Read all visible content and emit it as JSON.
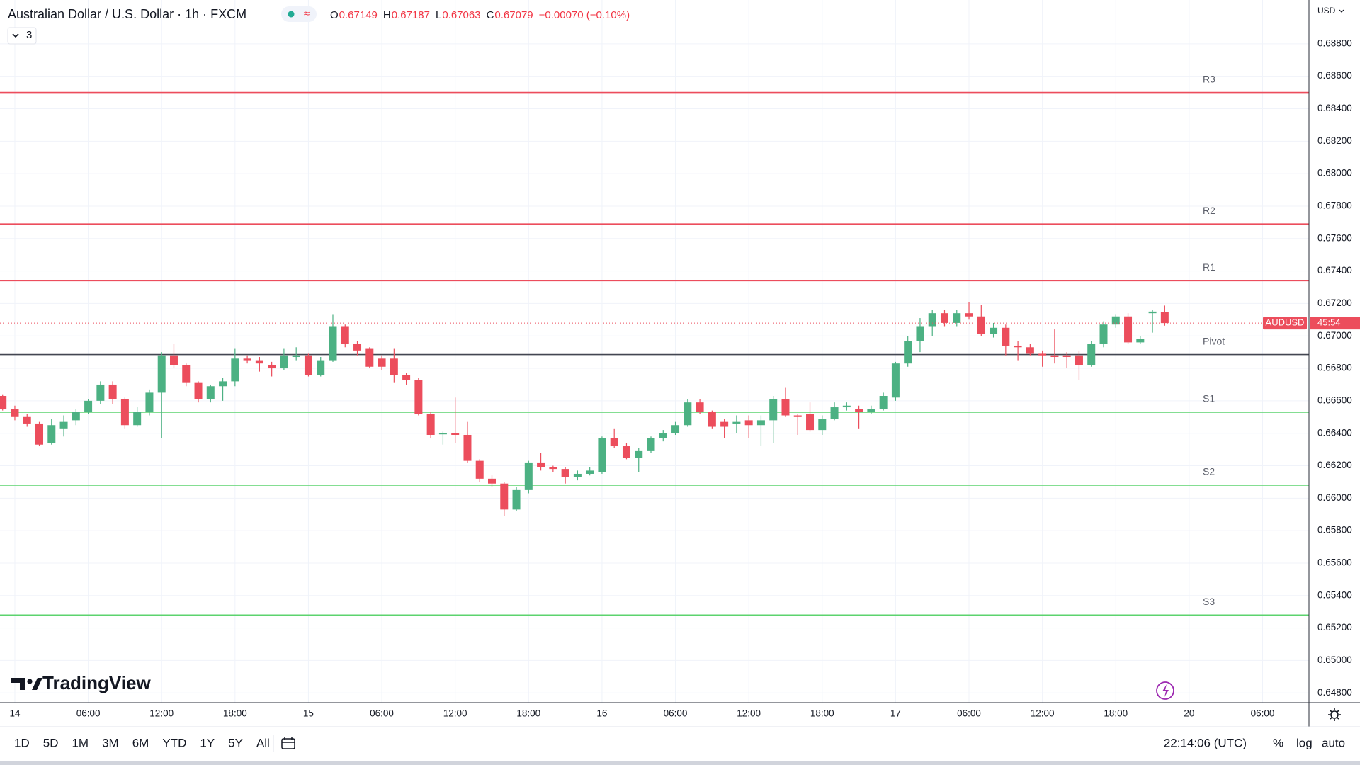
{
  "chart_data": {
    "type": "candlestick",
    "title": "Australian Dollar / U.S. Dollar · 1h · FXCM",
    "indicator_count": "3",
    "ohlc_header": [
      {
        "label": "O",
        "value": 0.67149
      },
      {
        "label": "H",
        "value": 0.67187
      },
      {
        "label": "L",
        "value": 0.67063
      },
      {
        "label": "C",
        "value": 0.67079
      }
    ],
    "change": "−0.00070 (−0.10%)",
    "currency": "USD",
    "symbol_tag": "AUDUSD",
    "countdown": "45:54",
    "watermark": "TradingView",
    "up_color": "#4cb183",
    "down_color": "#ec4d5c",
    "categories": [
      null,
      "14",
      null,
      null,
      null,
      null,
      null,
      "06:00",
      null,
      null,
      null,
      null,
      null,
      "12:00",
      null,
      null,
      null,
      null,
      null,
      "18:00",
      null,
      null,
      null,
      null,
      null,
      "15",
      null,
      null,
      null,
      null,
      null,
      "06:00",
      null,
      null,
      null,
      null,
      null,
      "12:00",
      null,
      null,
      null,
      null,
      null,
      "18:00",
      null,
      null,
      null,
      null,
      null,
      "16",
      null,
      null,
      null,
      null,
      null,
      "06:00",
      null,
      null,
      null,
      null,
      null,
      "12:00",
      null,
      null,
      null,
      null,
      null,
      "18:00",
      null,
      null,
      null,
      null,
      null,
      "17",
      null,
      null,
      null,
      null,
      null,
      "06:00",
      null,
      null,
      null,
      null,
      null,
      "12:00",
      null,
      null,
      null,
      null,
      null,
      "18:00",
      null,
      null,
      null,
      null,
      null,
      "20",
      null,
      null,
      null,
      null,
      null,
      "06:00",
      null,
      null,
      null
    ],
    "open": [
      0.6663,
      0.6655,
      0.665,
      0.6646,
      0.6634,
      0.6643,
      0.6648,
      0.6653,
      0.666,
      0.667,
      0.6661,
      0.6645,
      0.6653,
      0.6665,
      0.6688,
      0.6682,
      0.6671,
      0.6661,
      0.6669,
      0.6672,
      0.6686,
      0.6685,
      0.6682,
      0.668,
      0.6687,
      0.6688,
      0.6676,
      0.6685,
      0.6706,
      0.6695,
      0.6692,
      0.6686,
      0.6686,
      0.6676,
      0.6673,
      0.6652,
      0.664,
      0.664,
      0.6639,
      0.6623,
      0.6612,
      0.6609,
      0.6593,
      0.6605,
      0.6622,
      0.6619,
      0.6618,
      0.6613,
      0.6615,
      0.6616,
      0.6637,
      0.6632,
      0.6625,
      0.6629,
      0.6637,
      0.664,
      0.6645,
      0.6659,
      0.6653,
      0.6647,
      0.6646,
      0.6648,
      0.6645,
      0.6648,
      0.6661,
      0.6651,
      0.6652,
      0.6642,
      0.6649,
      0.6656,
      0.6655,
      0.6653,
      0.6655,
      0.6662,
      0.6683,
      0.6697,
      0.6706,
      0.6714,
      0.6708,
      0.6714,
      0.6712,
      0.6701,
      0.6705,
      0.6694,
      0.6693,
      0.6689,
      0.6688,
      0.6688,
      0.6688,
      0.6682,
      0.6695,
      0.6707,
      0.6712,
      0.6696,
      0.6714,
      0.67149,
      null,
      null,
      null,
      null,
      null,
      null,
      null,
      null,
      null,
      null,
      null
    ],
    "high": [
      0.6664,
      0.6657,
      0.6652,
      0.6647,
      0.6649,
      0.6651,
      0.6655,
      0.6661,
      0.6672,
      0.6672,
      0.6662,
      0.6656,
      0.6667,
      0.669,
      0.6695,
      0.6683,
      0.6672,
      0.667,
      0.6674,
      0.6692,
      0.6688,
      0.6687,
      0.6684,
      0.6692,
      0.6693,
      0.6689,
      0.6687,
      0.6713,
      0.6707,
      0.6697,
      0.6693,
      0.6688,
      0.6692,
      0.6677,
      0.6674,
      0.6653,
      0.6641,
      0.6662,
      0.6647,
      0.6624,
      0.6614,
      0.661,
      0.6607,
      0.6623,
      0.6628,
      0.662,
      0.6619,
      0.6617,
      0.6619,
      0.6638,
      0.6643,
      0.6634,
      0.6631,
      0.6638,
      0.6642,
      0.6647,
      0.6661,
      0.6661,
      0.6654,
      0.6649,
      0.6651,
      0.6651,
      0.6651,
      0.6663,
      0.6668,
      0.6652,
      0.6659,
      0.6651,
      0.6659,
      0.6659,
      0.6657,
      0.6657,
      0.6665,
      0.6684,
      0.67,
      0.6711,
      0.6716,
      0.6716,
      0.6716,
      0.6721,
      0.6719,
      0.6708,
      0.6707,
      0.6697,
      0.6695,
      0.6691,
      0.6704,
      0.669,
      0.6691,
      0.6697,
      0.6709,
      0.6713,
      0.6714,
      0.67,
      0.6716,
      0.67187,
      null,
      null,
      null,
      null,
      null,
      null,
      null,
      null,
      null,
      null,
      null
    ],
    "low": [
      0.6654,
      0.6648,
      0.6644,
      0.6632,
      0.6633,
      0.6638,
      0.6645,
      0.6652,
      0.6658,
      0.6658,
      0.6643,
      0.6644,
      0.6651,
      0.6637,
      0.668,
      0.6669,
      0.6659,
      0.6659,
      0.666,
      0.6669,
      0.6683,
      0.6678,
      0.6675,
      0.6679,
      0.6685,
      0.6675,
      0.6675,
      0.6684,
      0.6693,
      0.6688,
      0.668,
      0.6679,
      0.6671,
      0.667,
      0.6651,
      0.6637,
      0.6633,
      0.6634,
      0.6622,
      0.661,
      0.6607,
      0.6589,
      0.6592,
      0.6603,
      0.6617,
      0.6616,
      0.6609,
      0.6611,
      0.6614,
      0.6615,
      0.6631,
      0.6624,
      0.6616,
      0.6628,
      0.6635,
      0.6639,
      0.6644,
      0.6652,
      0.6643,
      0.6637,
      0.664,
      0.6637,
      0.6632,
      0.6634,
      0.665,
      0.6639,
      0.6641,
      0.6639,
      0.6648,
      0.6654,
      0.6643,
      0.6652,
      0.6654,
      0.666,
      0.6681,
      0.669,
      0.67,
      0.6706,
      0.6706,
      0.671,
      0.67,
      0.6699,
      0.6688,
      0.6685,
      0.6688,
      0.6681,
      0.6683,
      0.668,
      0.6673,
      0.6681,
      0.6693,
      0.6705,
      0.6695,
      0.6695,
      0.6702,
      0.67063,
      null,
      null,
      null,
      null,
      null,
      null,
      null,
      null,
      null,
      null,
      null
    ],
    "close": [
      0.6655,
      0.665,
      0.6646,
      0.6633,
      0.6645,
      0.6647,
      0.6653,
      0.666,
      0.667,
      0.6661,
      0.6645,
      0.6653,
      0.6665,
      0.6688,
      0.6682,
      0.6671,
      0.6661,
      0.6669,
      0.6672,
      0.6686,
      0.6685,
      0.6683,
      0.668,
      0.6688,
      0.6688,
      0.6676,
      0.6685,
      0.6706,
      0.6695,
      0.6691,
      0.6681,
      0.6681,
      0.6676,
      0.6673,
      0.6652,
      0.6639,
      0.664,
      0.6639,
      0.6623,
      0.6612,
      0.6609,
      0.6593,
      0.6605,
      0.6622,
      0.6619,
      0.6618,
      0.6613,
      0.6615,
      0.6617,
      0.6637,
      0.6632,
      0.6625,
      0.6629,
      0.6637,
      0.664,
      0.6645,
      0.6659,
      0.6653,
      0.6644,
      0.6644,
      0.6647,
      0.6645,
      0.6648,
      0.6661,
      0.6651,
      0.665,
      0.6642,
      0.6649,
      0.6656,
      0.6657,
      0.6653,
      0.6655,
      0.6663,
      0.6683,
      0.6697,
      0.6706,
      0.6714,
      0.6708,
      0.6714,
      0.6712,
      0.6701,
      0.6705,
      0.6694,
      0.6693,
      0.6689,
      0.6688,
      0.6687,
      0.6687,
      0.6682,
      0.6695,
      0.6707,
      0.6712,
      0.6696,
      0.6698,
      0.6715,
      0.67079,
      null,
      null,
      null,
      null,
      null,
      null,
      null,
      null,
      null,
      null,
      null
    ],
    "levels": [
      {
        "name": "R3",
        "value": 0.685,
        "color": "#ec4d5c"
      },
      {
        "name": "R2",
        "value": 0.6769,
        "color": "#ec4d5c"
      },
      {
        "name": "R1",
        "value": 0.6734,
        "color": "#ec4d5c"
      },
      {
        "name": "Pivot",
        "value": 0.66885,
        "color": "#434651"
      },
      {
        "name": "S1",
        "value": 0.6653,
        "color": "#5cd36e"
      },
      {
        "name": "S2",
        "value": 0.6608,
        "color": "#5cd36e"
      },
      {
        "name": "S3",
        "value": 0.6528,
        "color": "#5cd36e"
      }
    ],
    "ylim": [
      0.6474,
      0.6907
    ],
    "yticks": [
      {
        "value": 0.648,
        "label": "0.64800"
      },
      {
        "value": 0.65,
        "label": "0.65000"
      },
      {
        "value": 0.652,
        "label": "0.65200"
      },
      {
        "value": 0.654,
        "label": "0.65400"
      },
      {
        "value": 0.656,
        "label": "0.65600"
      },
      {
        "value": 0.658,
        "label": "0.65800"
      },
      {
        "value": 0.66,
        "label": "0.66000"
      },
      {
        "value": 0.662,
        "label": "0.66200"
      },
      {
        "value": 0.664,
        "label": "0.66400"
      },
      {
        "value": 0.666,
        "label": "0.66600"
      },
      {
        "value": 0.668,
        "label": "0.66800"
      },
      {
        "value": 0.67,
        "label": "0.67000"
      },
      {
        "value": 0.672,
        "label": "0.67200"
      },
      {
        "value": 0.674,
        "label": "0.67400"
      },
      {
        "value": 0.676,
        "label": "0.67600"
      },
      {
        "value": 0.678,
        "label": "0.67800"
      },
      {
        "value": 0.68,
        "label": "0.68000"
      },
      {
        "value": 0.682,
        "label": "0.68200"
      },
      {
        "value": 0.684,
        "label": "0.68400"
      },
      {
        "value": 0.686,
        "label": "0.68600"
      },
      {
        "value": 0.688,
        "label": "0.68800"
      }
    ],
    "grid": true,
    "ranges": [
      "1D",
      "5D",
      "1M",
      "3M",
      "6M",
      "YTD",
      "1Y",
      "5Y",
      "All"
    ],
    "clock": "22:14:06 (UTC)",
    "scale_options": [
      "%",
      "log",
      "auto"
    ]
  }
}
